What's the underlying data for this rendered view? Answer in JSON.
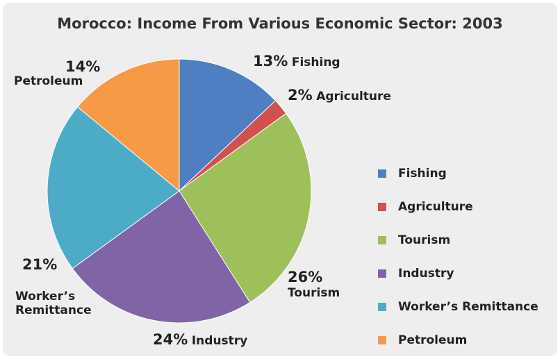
{
  "chart_data": {
    "type": "pie",
    "title": "Morocco: Income From Various Economic Sector: 2003",
    "slices": [
      {
        "name": "Fishing",
        "value": 13,
        "pct_label": "13%",
        "name_label": "Fishing",
        "color": "#4f7fc2"
      },
      {
        "name": "Agriculture",
        "value": 2,
        "pct_label": "2%",
        "name_label": "Agriculture",
        "color": "#d2504d"
      },
      {
        "name": "Tourism",
        "value": 26,
        "pct_label": "26%",
        "name_label": "Tourism",
        "color": "#9dc05b"
      },
      {
        "name": "Industry",
        "value": 24,
        "pct_label": "24%",
        "name_label": "Industry",
        "color": "#8064a6"
      },
      {
        "name": "Worker’s Remittance",
        "value": 21,
        "pct_label": "21%",
        "name_label_line1": "Worker’s",
        "name_label_line2": "Remittance",
        "color": "#4cacc7"
      },
      {
        "name": "Petroleum",
        "value": 14,
        "pct_label": "14%",
        "name_label": "Petroleum",
        "color": "#f79a45"
      }
    ],
    "legend": {
      "position": "right",
      "items": [
        "Fishing",
        "Agriculture",
        "Tourism",
        "Industry",
        "Worker’s Remittance",
        "Petroleum"
      ]
    }
  }
}
